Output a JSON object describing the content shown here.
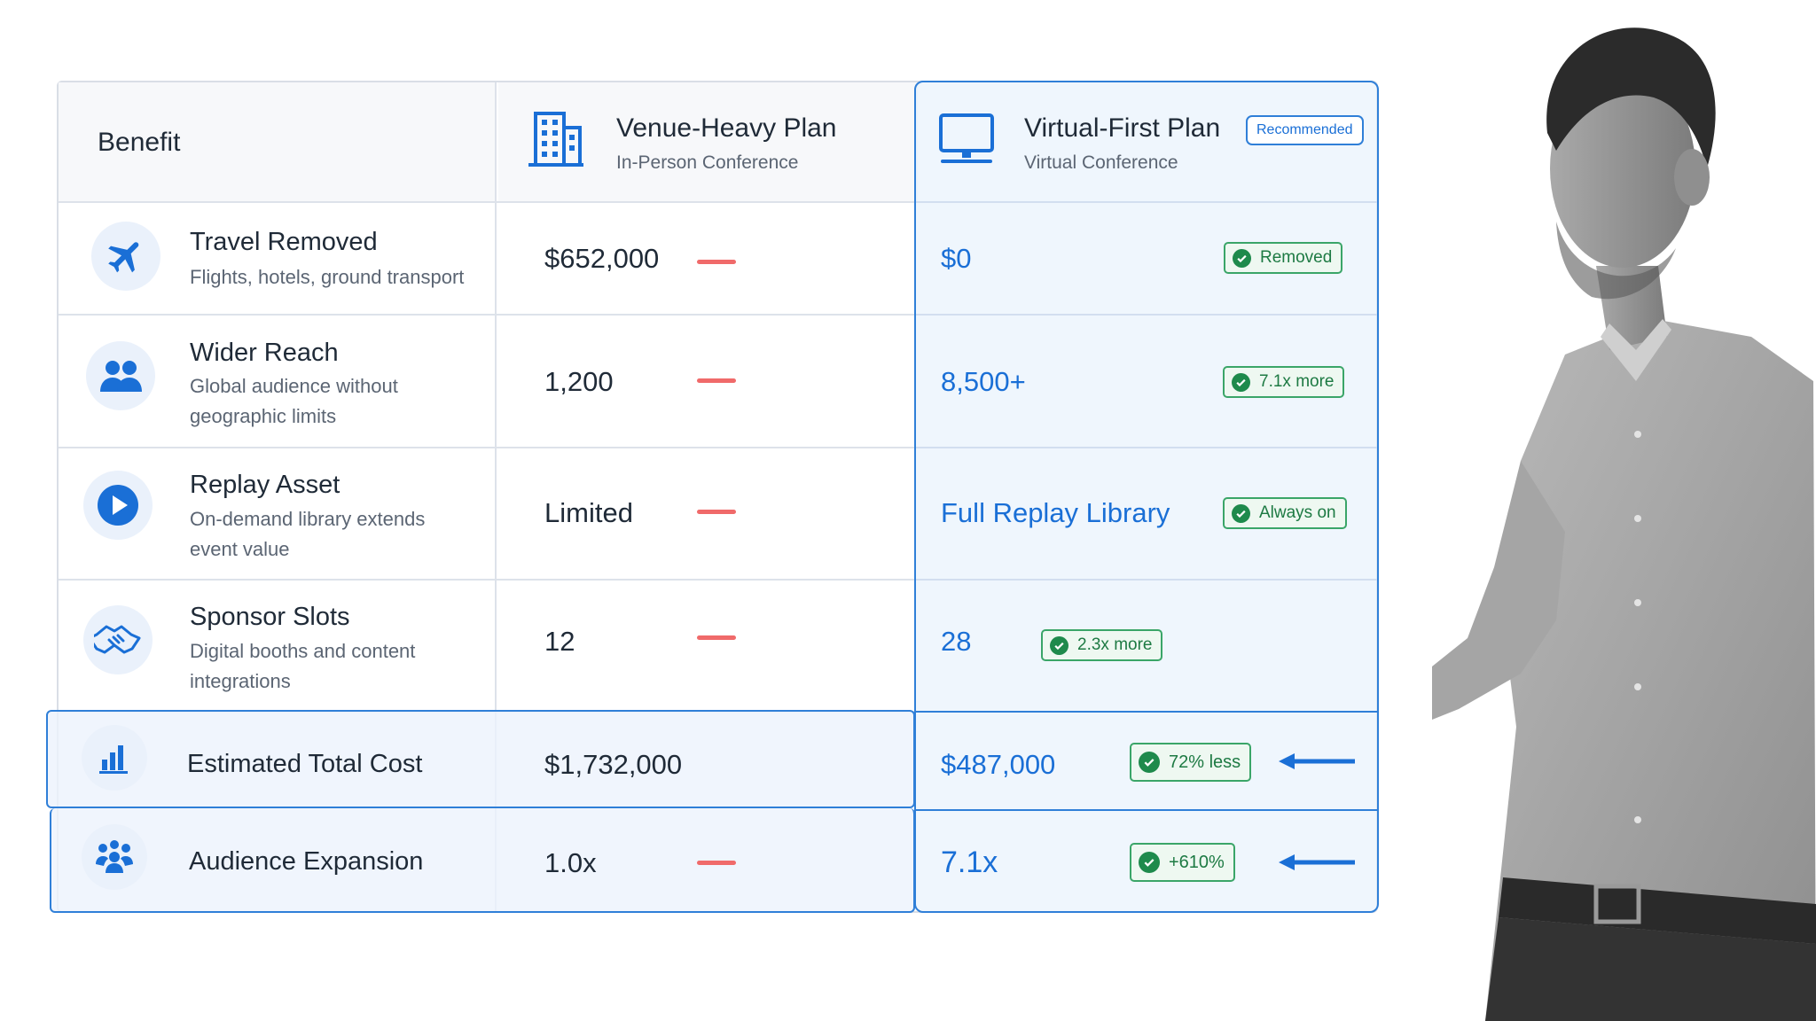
{
  "header": {
    "benefit_label": "Benefit",
    "venue": {
      "title": "Venue-Heavy Plan",
      "subtitle": "In-Person Conference",
      "icon": "building-icon"
    },
    "virtual": {
      "title": "Virtual-First Plan",
      "subtitle": "Virtual Conference",
      "badge": "Recommended",
      "icon": "monitor-icon"
    }
  },
  "rows": [
    {
      "title": "Travel Removed",
      "subtitle": "Flights, hotels, ground transport",
      "icon": "airplane-icon",
      "venue": "$652,000",
      "virtual": "$0",
      "badge": "Removed"
    },
    {
      "title": "Wider Reach",
      "subtitle": "Global audience without geographic limits",
      "icon": "people-icon",
      "venue": "1,200",
      "virtual": "8,500+",
      "badge": "7.1x more"
    },
    {
      "title": "Replay Asset",
      "subtitle": "On-demand library extends event value",
      "icon": "play-icon",
      "venue": "Limited",
      "virtual": "Full Replay Library",
      "badge": "Always on"
    },
    {
      "title": "Sponsor Slots",
      "subtitle": "Digital booths and content integrations",
      "icon": "handshake-icon",
      "venue": "12",
      "virtual": "28",
      "badge": "2.3x more"
    }
  ],
  "totals": [
    {
      "title": "Estimated Total Cost",
      "icon": "bar-chart-icon",
      "venue": "$1,732,000",
      "virtual": "$487,000",
      "badge": "72% less"
    },
    {
      "title": "Audience Expansion",
      "icon": "group-icon",
      "venue": "1.0x",
      "virtual": "7.1x",
      "badge": "+610%"
    }
  ],
  "colors": {
    "accent": "#1a6fd6",
    "positive": "#1e8a4c",
    "negative": "#f06a6a"
  }
}
